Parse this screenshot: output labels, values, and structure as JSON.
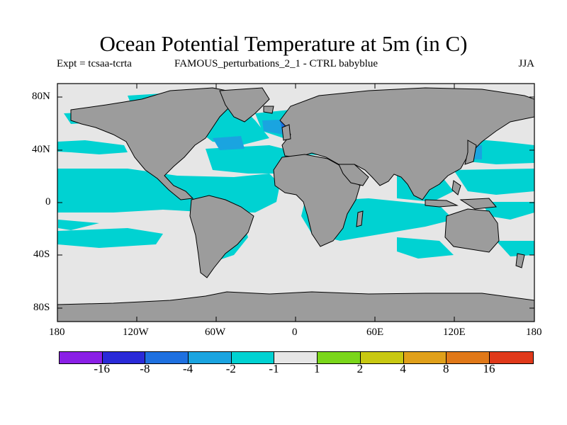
{
  "header": {
    "title": "Ocean Potential Temperature at 5m (in C)",
    "expt_label": "Expt = tcsaa-tcrta",
    "run_label": "FAMOUS_perturbations_2_1 - CTRL babyblue",
    "season": "JJA"
  },
  "axes": {
    "y_ticks": [
      "80N",
      "40N",
      "0",
      "40S",
      "80S"
    ],
    "x_ticks": [
      "180",
      "120W",
      "60W",
      "0",
      "60E",
      "120E",
      "180"
    ]
  },
  "legend": {
    "colors": [
      "#8a1fe6",
      "#2a2ad8",
      "#1e70e0",
      "#1aa4e0",
      "#00d2d2",
      "#e6e6e6",
      "#7ad61a",
      "#c8c812",
      "#e0a01a",
      "#e07818",
      "#e0391a"
    ],
    "labels": [
      "-16",
      "-8",
      "-4",
      "-2",
      "-1",
      "1",
      "2",
      "4",
      "8",
      "16"
    ]
  },
  "colors": {
    "land": "#9c9c9c",
    "ocean_small_change": "#e6e6e6",
    "ocean_cool": "#00d2d2",
    "ocean_cooler": "#1aa4e0",
    "ocean_coolest": "#1e70e0"
  }
}
